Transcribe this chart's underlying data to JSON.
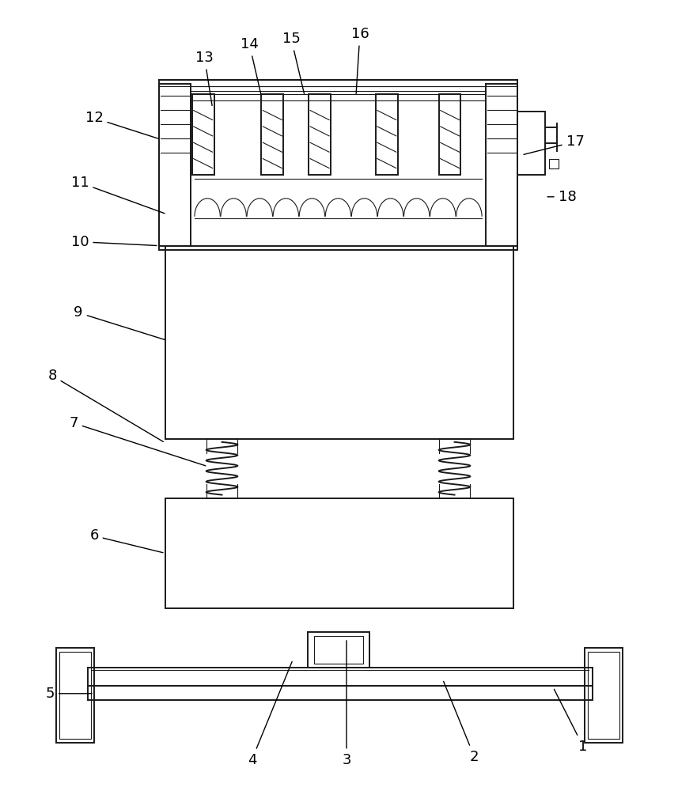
{
  "bg_color": "#ffffff",
  "line_color": "#1a1a1a",
  "lw": 1.4,
  "tlw": 0.8,
  "figsize": [
    8.57,
    10.0
  ],
  "dpi": 100
}
